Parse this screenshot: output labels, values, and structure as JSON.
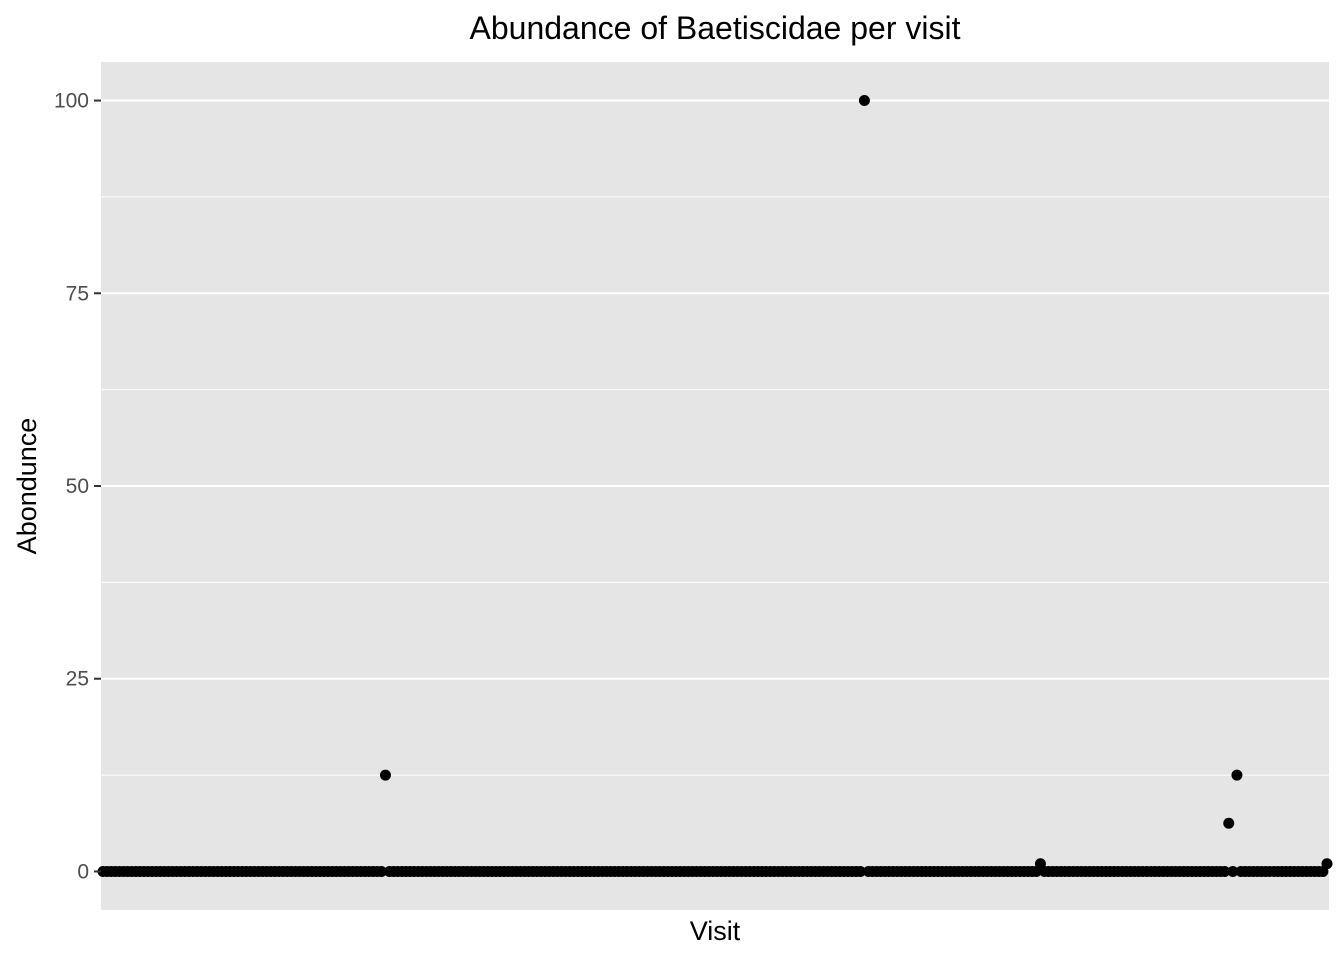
{
  "chart_data": {
    "type": "scatter",
    "title": "Abundance of Baetiscidae per visit",
    "xlabel": "Visit",
    "ylabel": "Abondunce",
    "x_tick_labels": "hidden",
    "y_ticks": [
      0,
      25,
      50,
      75,
      100
    ],
    "y_tick_labels": [
      "0",
      "25",
      "50",
      "75",
      "100"
    ],
    "ylim": [
      -5,
      105
    ],
    "grid": true,
    "legend": "none",
    "point_color": "#000000",
    "panel_background": "#e5e5e5",
    "grid_color": "#ffffff",
    "n_visits": 300,
    "baseline_value": 0,
    "nonzero_points": [
      {
        "visit": 70,
        "abundance": 12.5
      },
      {
        "visit": 187,
        "abundance": 100
      },
      {
        "visit": 230,
        "abundance": 1
      },
      {
        "visit": 276,
        "abundance": 6.25
      },
      {
        "visit": 278,
        "abundance": 12.5
      },
      {
        "visit": 300,
        "abundance": 1
      }
    ]
  }
}
